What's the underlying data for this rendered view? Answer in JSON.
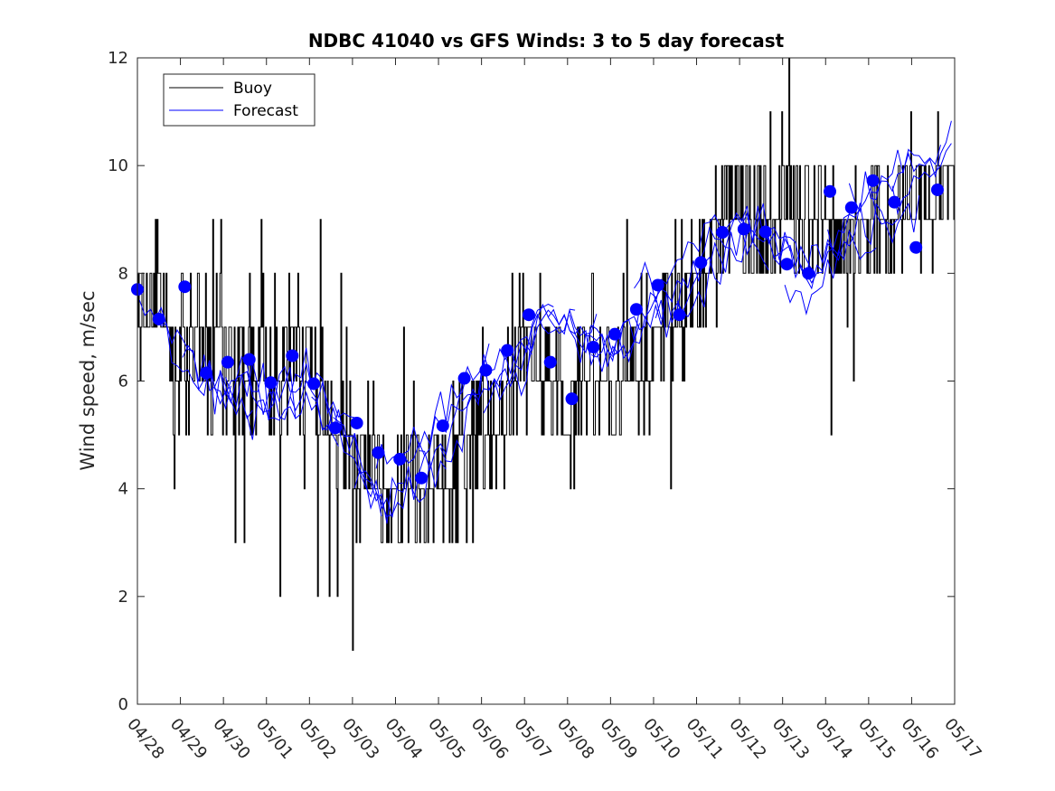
{
  "chart_data": {
    "type": "line",
    "title": "NDBC 41040 vs GFS Winds: 3 to 5 day forecast",
    "xlabel": "",
    "ylabel": "Wind speed, m/sec",
    "ylim": [
      0,
      12
    ],
    "yticks": [
      0,
      2,
      4,
      6,
      8,
      10,
      12
    ],
    "xlim_days": [
      0,
      19
    ],
    "x_tick_labels": [
      "04/28",
      "04/29",
      "04/30",
      "05/01",
      "05/02",
      "05/03",
      "05/04",
      "05/05",
      "05/06",
      "05/07",
      "05/08",
      "05/09",
      "05/10",
      "05/11",
      "05/12",
      "05/13",
      "05/14",
      "05/15",
      "05/16",
      "05/17"
    ],
    "legend": {
      "position": "top-left",
      "entries": [
        {
          "label": "Buoy",
          "color": "#000000"
        },
        {
          "label": "Forecast",
          "color": "#0000ff"
        }
      ]
    },
    "colors": {
      "buoy": "#000000",
      "forecast": "#0000ff",
      "marker": "#0000ff"
    },
    "buoy_trend": [
      [
        0,
        7.3
      ],
      [
        0.5,
        7.4
      ],
      [
        1,
        6.6
      ],
      [
        1.5,
        6.8
      ],
      [
        2,
        6.4
      ],
      [
        2.5,
        6.5
      ],
      [
        3,
        6.1
      ],
      [
        3.5,
        6.5
      ],
      [
        4,
        6.1
      ],
      [
        4.5,
        5.3
      ],
      [
        5,
        4.4
      ],
      [
        5.5,
        4.3
      ],
      [
        6,
        3.8
      ],
      [
        6.5,
        4.2
      ],
      [
        7,
        3.9
      ],
      [
        7.5,
        4.6
      ],
      [
        8,
        5.2
      ],
      [
        8.5,
        5.5
      ],
      [
        9,
        6.3
      ],
      [
        9.5,
        6.6
      ],
      [
        10,
        5.1
      ],
      [
        10.5,
        6.4
      ],
      [
        11,
        5.8
      ],
      [
        11.5,
        6.2
      ],
      [
        12,
        6.8
      ],
      [
        12.5,
        7.2
      ],
      [
        13,
        7.8
      ],
      [
        13.5,
        8.9
      ],
      [
        14,
        9.4
      ],
      [
        14.5,
        9.0
      ],
      [
        15,
        9.6
      ],
      [
        15.5,
        9.2
      ],
      [
        16,
        8.9
      ],
      [
        16.5,
        8.7
      ],
      [
        17,
        8.8
      ],
      [
        17.5,
        9.1
      ],
      [
        18,
        9.4
      ],
      [
        18.5,
        9.5
      ],
      [
        19,
        9.8
      ]
    ],
    "forecast_trend": [
      [
        0,
        7.6
      ],
      [
        0.5,
        7.3
      ],
      [
        1,
        6.8
      ],
      [
        1.5,
        6.2
      ],
      [
        2,
        6.0
      ],
      [
        2.5,
        6.0
      ],
      [
        3,
        5.7
      ],
      [
        3.5,
        5.8
      ],
      [
        4,
        6.1
      ],
      [
        4.5,
        5.5
      ],
      [
        5,
        4.9
      ],
      [
        5.5,
        4.1
      ],
      [
        6,
        3.8
      ],
      [
        6.5,
        4.4
      ],
      [
        7,
        4.8
      ],
      [
        7.5,
        5.4
      ],
      [
        8,
        6.0
      ],
      [
        8.5,
        6.3
      ],
      [
        9,
        6.6
      ],
      [
        9.5,
        7.4
      ],
      [
        10,
        7.2
      ],
      [
        10.5,
        6.9
      ],
      [
        11,
        6.6
      ],
      [
        11.5,
        7.1
      ],
      [
        12,
        7.4
      ],
      [
        12.5,
        7.6
      ],
      [
        13,
        8.1
      ],
      [
        13.5,
        8.6
      ],
      [
        14,
        8.9
      ],
      [
        14.5,
        8.8
      ],
      [
        15,
        8.5
      ],
      [
        15.5,
        8.0
      ],
      [
        16,
        8.4
      ],
      [
        16.5,
        8.9
      ],
      [
        17,
        9.2
      ],
      [
        17.5,
        9.1
      ],
      [
        18,
        9.3
      ],
      [
        18.5,
        9.7
      ],
      [
        19,
        10.2
      ]
    ],
    "forecast_markers": [
      [
        0,
        7.7
      ],
      [
        0.5,
        7.15
      ],
      [
        1.1,
        7.75
      ],
      [
        1.6,
        6.15
      ],
      [
        2.1,
        6.35
      ],
      [
        2.6,
        6.4
      ],
      [
        3.1,
        5.97
      ],
      [
        3.6,
        6.47
      ],
      [
        4.1,
        5.95
      ],
      [
        4.6,
        5.13
      ],
      [
        5.1,
        5.22
      ],
      [
        5.6,
        4.67
      ],
      [
        6.1,
        4.55
      ],
      [
        6.6,
        4.2
      ],
      [
        7.1,
        5.17
      ],
      [
        7.6,
        6.05
      ],
      [
        8.1,
        6.2
      ],
      [
        8.6,
        6.57
      ],
      [
        9.1,
        7.23
      ],
      [
        9.6,
        6.35
      ],
      [
        10.1,
        5.67
      ],
      [
        10.6,
        6.63
      ],
      [
        11.1,
        6.87
      ],
      [
        11.6,
        7.33
      ],
      [
        12.1,
        7.78
      ],
      [
        12.6,
        7.23
      ],
      [
        13.1,
        8.2
      ],
      [
        13.6,
        8.76
      ],
      [
        14.1,
        8.82
      ],
      [
        14.6,
        8.77
      ],
      [
        15.1,
        8.17
      ],
      [
        15.6,
        8.0
      ],
      [
        16.1,
        9.52
      ],
      [
        16.6,
        9.22
      ],
      [
        17.1,
        9.72
      ],
      [
        17.6,
        9.32
      ],
      [
        18.1,
        8.48
      ],
      [
        18.6,
        9.55
      ]
    ]
  }
}
